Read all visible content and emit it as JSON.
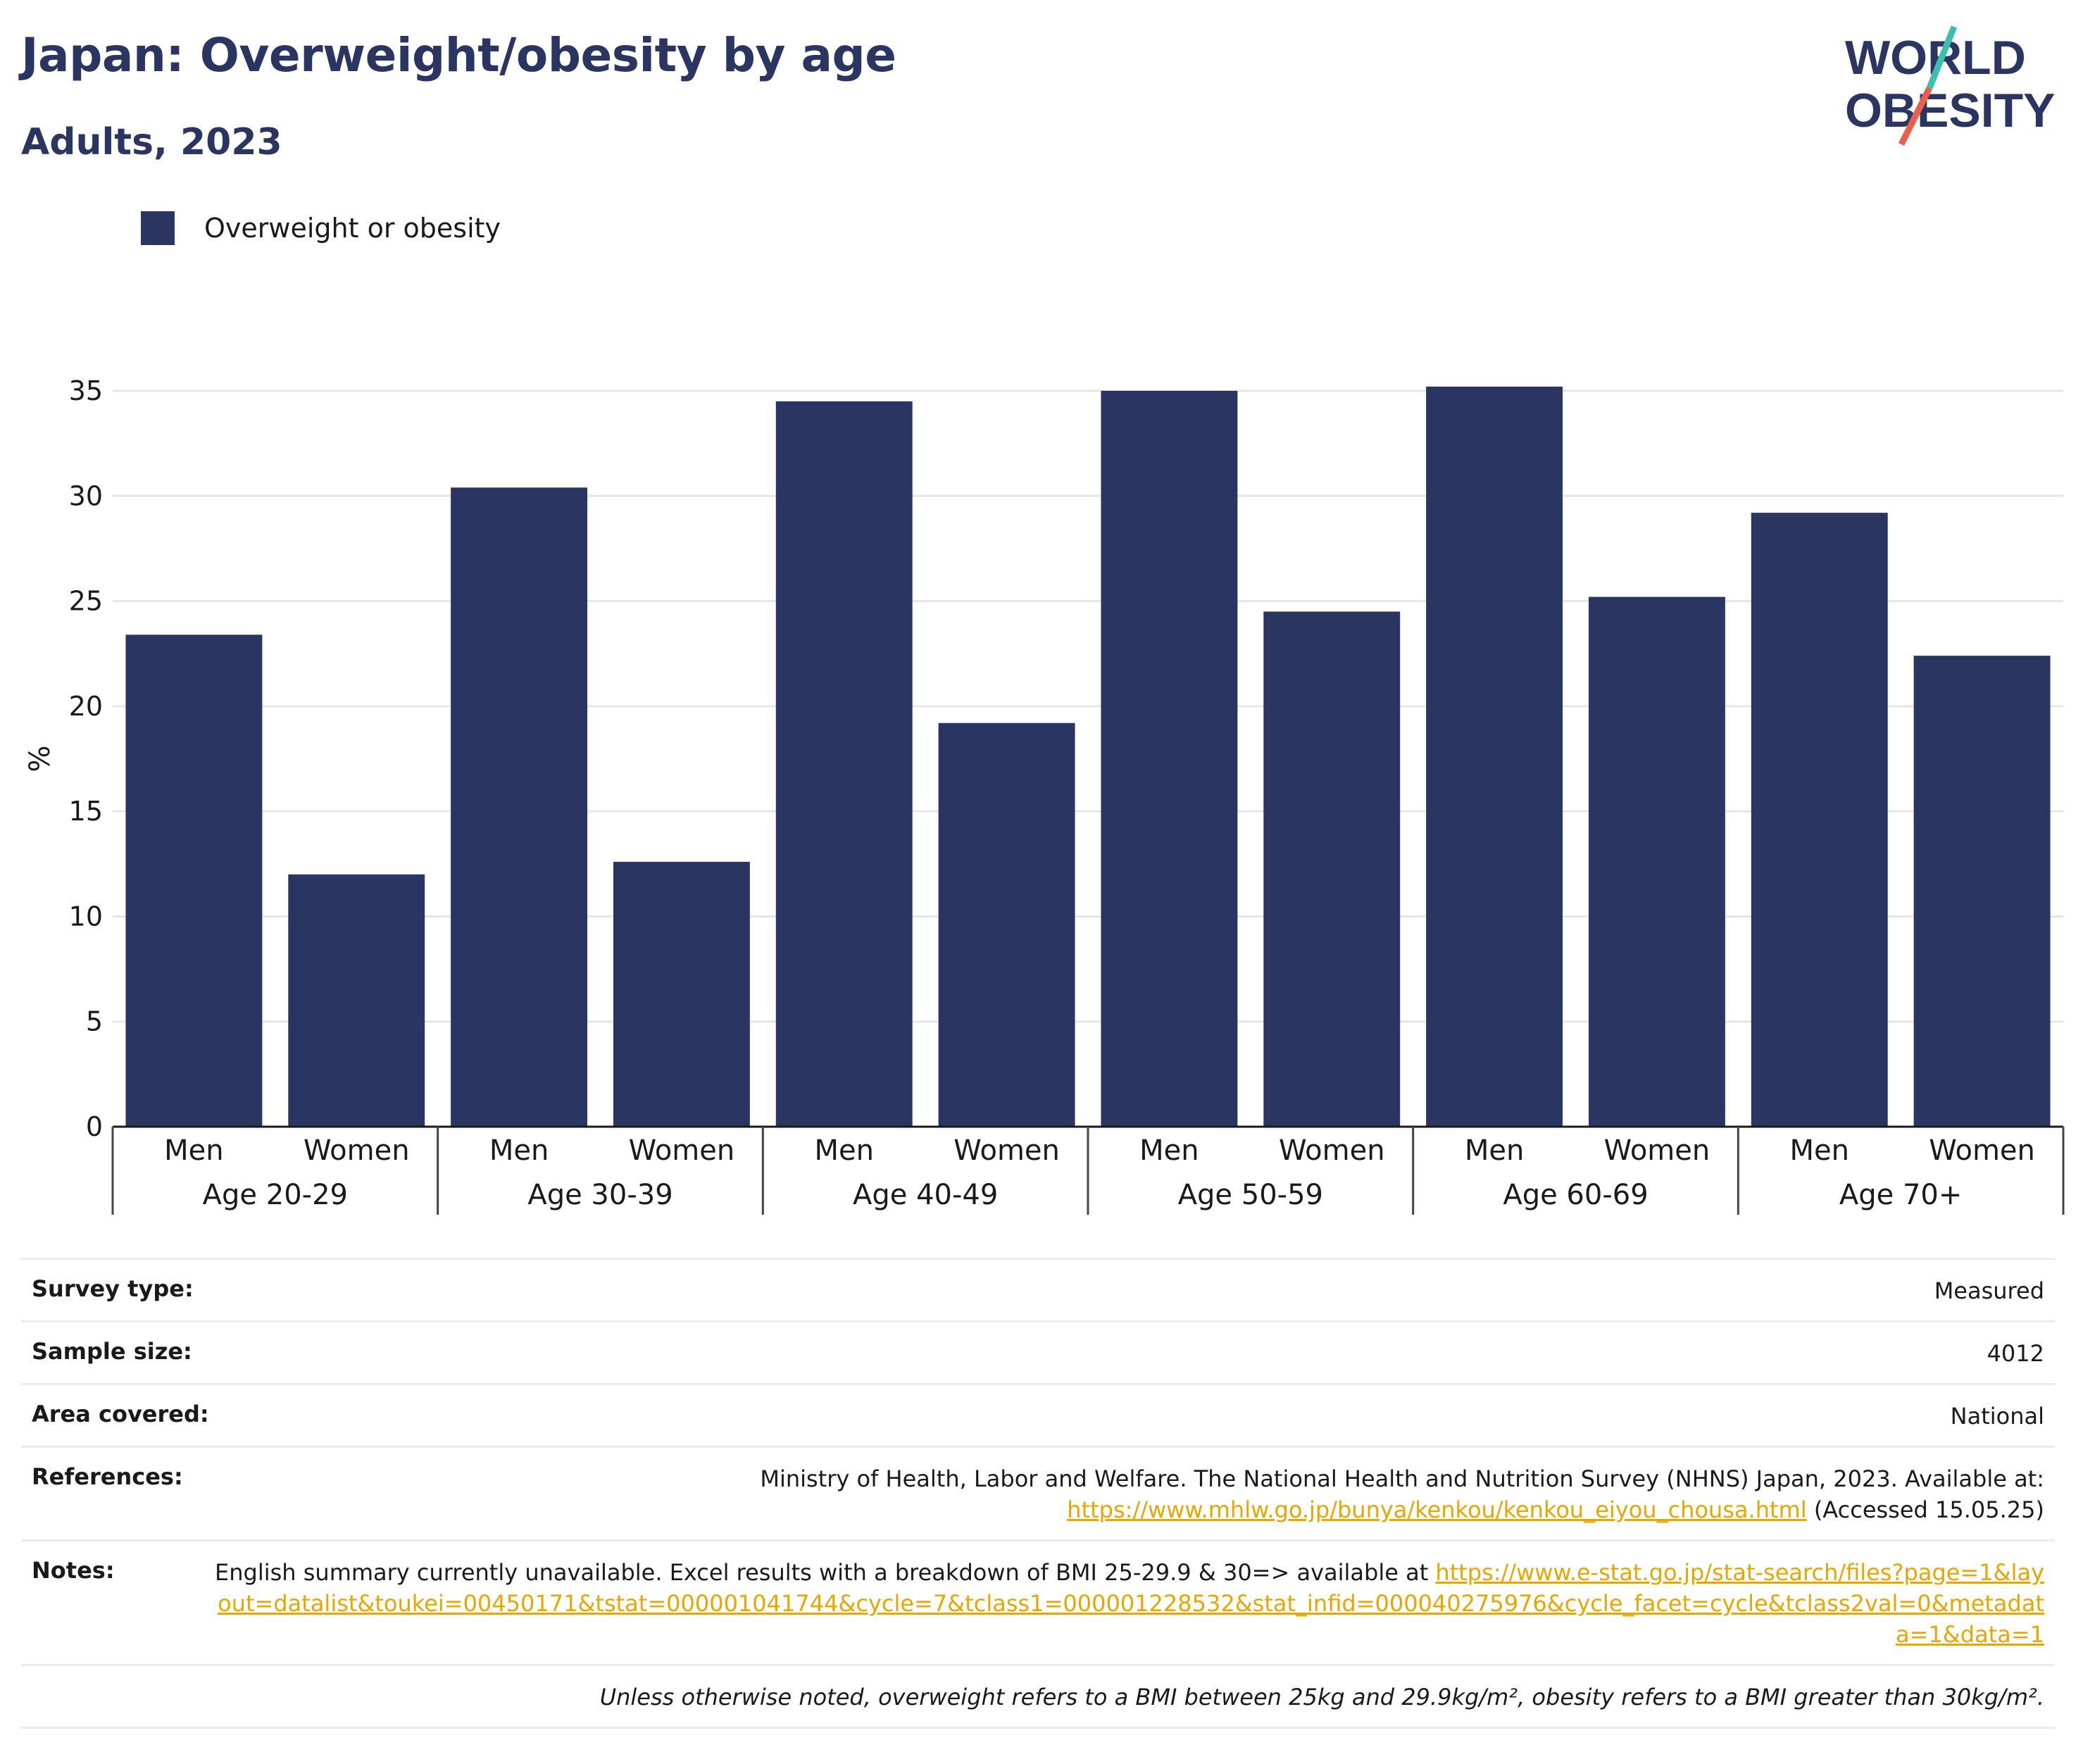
{
  "header": {
    "title": "Japan: Overweight/obesity by age",
    "subtitle": "Adults, 2023",
    "logo_line1": "WORLD",
    "logo_line2": "OBESITY"
  },
  "legend": {
    "label": "Overweight or obesity",
    "color": "#2b3562"
  },
  "chart_data": {
    "type": "bar",
    "groups": [
      "Age 20-29",
      "Age 30-39",
      "Age 40-49",
      "Age 50-59",
      "Age 60-69",
      "Age 70+"
    ],
    "subcategories": [
      "Men",
      "Women"
    ],
    "series": [
      {
        "name": "Overweight or obesity",
        "values": [
          23.4,
          12.0,
          30.4,
          12.6,
          34.5,
          19.2,
          35.0,
          24.5,
          35.2,
          25.2,
          29.2,
          22.4
        ]
      }
    ],
    "ylabel": "%",
    "ylim": [
      0,
      35
    ],
    "yticks": [
      0,
      5,
      10,
      15,
      20,
      25,
      30,
      35
    ],
    "grid": true,
    "color": "#2b3562"
  },
  "info": {
    "survey_type_label": "Survey type:",
    "survey_type": "Measured",
    "sample_size_label": "Sample size:",
    "sample_size": "4012",
    "area_label": "Area covered:",
    "area": "National",
    "references_label": "References:",
    "references_text": "Ministry of Health, Labor and Welfare. The National Health and Nutrition Survey (NHNS) Japan, 2023. Available at:",
    "references_link": "https://www.mhlw.go.jp/bunya/kenkou/kenkou_eiyou_chousa.html",
    "references_accessed": "(Accessed 15.05.25)",
    "notes_label": "Notes:",
    "notes_text": "English summary currently unavailable. Excel results with a breakdown of BMI 25-29.9 & 30=> available at",
    "notes_link": "https://www.e-stat.go.jp/stat-search/files?page=1&layout=datalist&toukei=00450171&tstat=000001041744&cycle=7&tclass1=000001228532&stat_infid=000040275976&cycle_facet=cycle&tclass2val=0&metadata=1&data=1",
    "footnote": "Unless otherwise noted, overweight refers to a BMI between 25kg and 29.9kg/m², obesity refers to a BMI greater than 30kg/m²."
  }
}
